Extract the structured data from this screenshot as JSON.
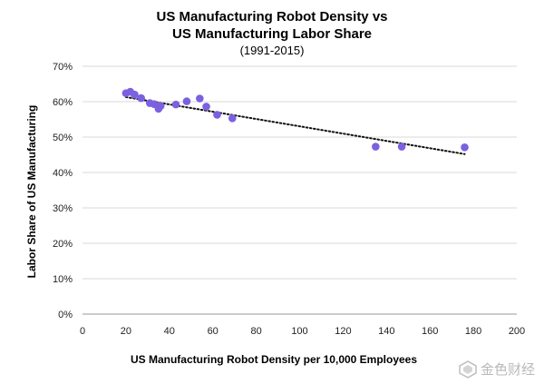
{
  "chart_data": {
    "type": "scatter",
    "title_line1": "US Manufacturing Robot Density vs",
    "title_line2": "US Manufacturing Labor Share",
    "subtitle": "(1991-2015)",
    "xlabel": "US Manufacturing Robot Density per 10,000 Employees",
    "ylabel": "Labor Share of US Manufacturing",
    "xlim": [
      0,
      200
    ],
    "ylim": [
      0,
      70
    ],
    "xticks": [
      0,
      20,
      40,
      60,
      80,
      100,
      120,
      140,
      160,
      180,
      200
    ],
    "xtick_labels": [
      "0",
      "20",
      "40",
      "60",
      "80",
      "100",
      "120",
      "140",
      "160",
      "180",
      "200"
    ],
    "yticks": [
      0,
      10,
      20,
      30,
      40,
      50,
      60,
      70
    ],
    "ytick_labels": [
      "0%",
      "10%",
      "20%",
      "30%",
      "40%",
      "50%",
      "60%",
      "70%"
    ],
    "grid": "horizontal",
    "points": [
      {
        "x": 20,
        "y": 62.4
      },
      {
        "x": 22,
        "y": 62.8
      },
      {
        "x": 24,
        "y": 62.0
      },
      {
        "x": 27,
        "y": 61.0
      },
      {
        "x": 31,
        "y": 59.6
      },
      {
        "x": 33,
        "y": 59.3
      },
      {
        "x": 35,
        "y": 58.0
      },
      {
        "x": 36,
        "y": 58.8
      },
      {
        "x": 43,
        "y": 59.2
      },
      {
        "x": 48,
        "y": 60.1
      },
      {
        "x": 54,
        "y": 60.9
      },
      {
        "x": 57,
        "y": 58.6
      },
      {
        "x": 62,
        "y": 56.3
      },
      {
        "x": 69,
        "y": 55.3
      },
      {
        "x": 135,
        "y": 47.3
      },
      {
        "x": 147,
        "y": 47.3
      },
      {
        "x": 176,
        "y": 47.1
      }
    ],
    "trendline": {
      "x": [
        20,
        176
      ],
      "y": [
        61.3,
        45.2
      ],
      "style": "dotted"
    },
    "point_color": "#7b61e0"
  },
  "watermark": {
    "text": "金色财经",
    "color": "#b9b9b9"
  }
}
